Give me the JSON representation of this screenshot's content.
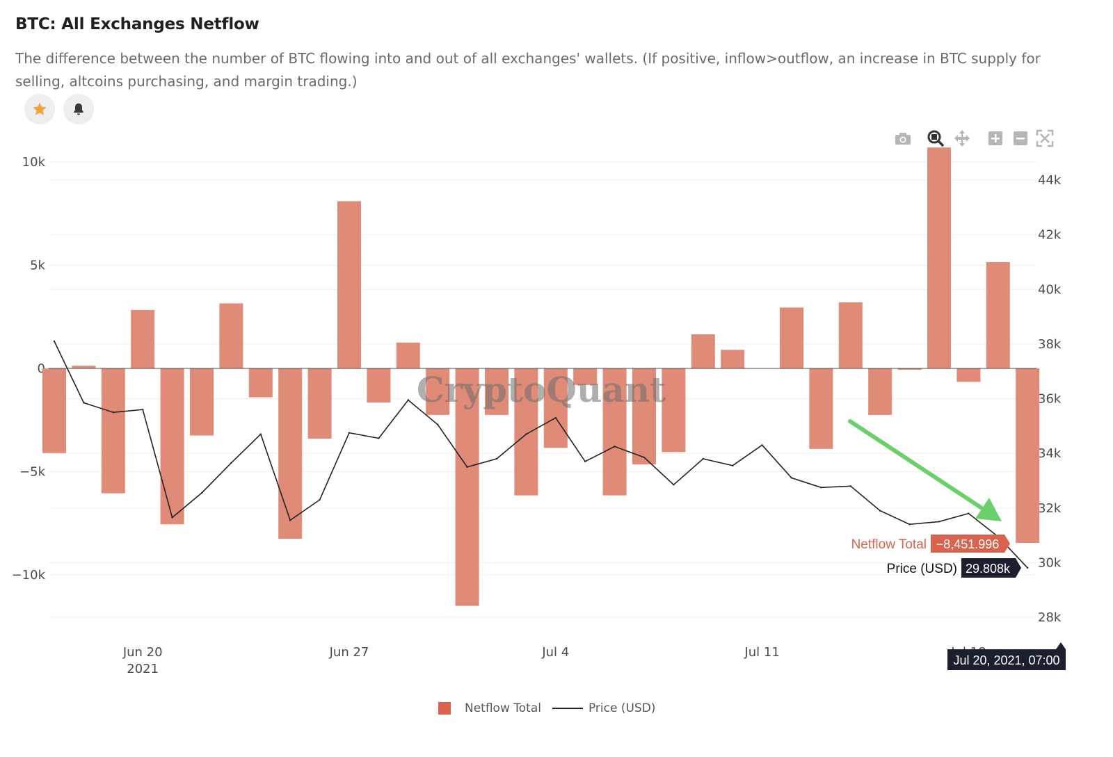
{
  "header": {
    "title": "BTC: All Exchanges Netflow",
    "description": "The difference between the number of BTC flowing into and out of all exchanges' wallets. (If positive, inflow>outflow, an increase in BTC supply for selling, altcoins purchasing, and margin trading.)"
  },
  "actions": {
    "favorite_icon": "star-icon",
    "alert_icon": "bell-icon"
  },
  "toolbar": [
    "camera-icon",
    "zoom-icon",
    "pan-icon",
    "zoom-in-icon",
    "zoom-out-icon",
    "autoscale-icon"
  ],
  "watermark": "CryptoQuant",
  "colors": {
    "bar": "#e08a78",
    "price_line": "#222222",
    "tooltip_netflow": "#d9634f",
    "tooltip_price": "#1b1f2e",
    "arrow": "#6cd06a",
    "accent_star": "#f2a33a"
  },
  "chart_data": {
    "type": "bar",
    "x": [
      "2021-06-17",
      "2021-06-18",
      "2021-06-19",
      "2021-06-20",
      "2021-06-21",
      "2021-06-22",
      "2021-06-23",
      "2021-06-24",
      "2021-06-25",
      "2021-06-26",
      "2021-06-27",
      "2021-06-28",
      "2021-06-29",
      "2021-06-30",
      "2021-07-01",
      "2021-07-02",
      "2021-07-03",
      "2021-07-04",
      "2021-07-05",
      "2021-07-06",
      "2021-07-07",
      "2021-07-08",
      "2021-07-09",
      "2021-07-10",
      "2021-07-11",
      "2021-07-12",
      "2021-07-13",
      "2021-07-14",
      "2021-07-15",
      "2021-07-16",
      "2021-07-17",
      "2021-07-18",
      "2021-07-19",
      "2021-07-20"
    ],
    "series": [
      {
        "name": "Netflow Total",
        "type": "bar",
        "axis": "left",
        "values": [
          -4100,
          130,
          -6050,
          2830,
          -7550,
          -3250,
          3150,
          -1400,
          -8250,
          -3400,
          8100,
          -1650,
          1250,
          -2250,
          -11500,
          -2250,
          -6150,
          -3850,
          -800,
          -6150,
          -4650,
          -4050,
          1650,
          900,
          0,
          2950,
          -3900,
          3200,
          -2250,
          -50,
          10700,
          -650,
          5150,
          -8451.996
        ]
      },
      {
        "name": "Price (USD)",
        "type": "line",
        "axis": "right",
        "values": [
          38100,
          35850,
          35500,
          35600,
          31650,
          32550,
          33650,
          34700,
          31550,
          32300,
          34750,
          34550,
          35950,
          35050,
          33500,
          33800,
          34700,
          35300,
          33700,
          34250,
          33850,
          32850,
          33800,
          33550,
          34300,
          33100,
          32750,
          32800,
          31900,
          31400,
          31500,
          31800,
          30950,
          29808
        ]
      }
    ],
    "x_ticks": [
      {
        "date": "2021-06-20",
        "label": "Jun 20",
        "sublabel": "2021"
      },
      {
        "date": "2021-06-27",
        "label": "Jun 27",
        "sublabel": ""
      },
      {
        "date": "2021-07-04",
        "label": "Jul 4",
        "sublabel": ""
      },
      {
        "date": "2021-07-11",
        "label": "Jul 11",
        "sublabel": ""
      },
      {
        "date": "2021-07-18",
        "label": "Jul 18",
        "sublabel": ""
      }
    ],
    "y_left": {
      "range": [
        -12500,
        11000
      ],
      "ticks": [
        10000,
        5000,
        0,
        -5000,
        -10000
      ],
      "tick_labels": [
        "10k",
        "5k",
        "0",
        "−5k",
        "−10k"
      ]
    },
    "y_right": {
      "range": [
        27700,
        45500
      ],
      "ticks": [
        44000,
        42000,
        40000,
        38000,
        36000,
        34000,
        32000,
        30000,
        28000
      ],
      "tick_labels": [
        "44k",
        "42k",
        "40k",
        "38k",
        "36k",
        "34k",
        "32k",
        "30k",
        "28k"
      ]
    },
    "hover": {
      "date_label": "Jul 20, 2021, 07:00",
      "netflow_label": "Netflow Total",
      "netflow_value": "−8,451.996",
      "price_label": "Price (USD)",
      "price_value": "29.808k"
    },
    "legend": {
      "position": "bottom-center",
      "items": [
        "Netflow Total",
        "Price (USD)"
      ]
    },
    "grid": true
  }
}
